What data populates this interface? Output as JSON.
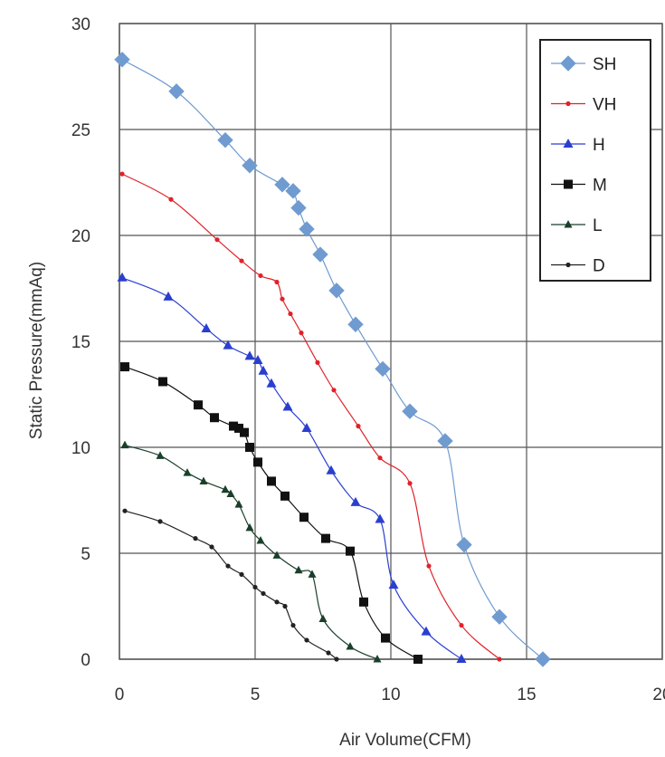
{
  "chart_data": {
    "type": "line",
    "title": "",
    "xlabel": "Air Volume(CFM)",
    "ylabel": "Static Pressure(mmAq)",
    "xlim": [
      0,
      20
    ],
    "ylim": [
      0,
      30
    ],
    "xticks": [
      "0",
      "5",
      "10",
      "15",
      "20"
    ],
    "yticks": [
      "0",
      "5",
      "10",
      "15",
      "20",
      "25",
      "30"
    ],
    "grid": true,
    "legend_position": "top-right",
    "series": [
      {
        "name": "SH",
        "color": "#6f9bd0",
        "marker": "diamond",
        "x": [
          0.1,
          2.1,
          3.9,
          4.8,
          6.0,
          6.4,
          6.6,
          6.9,
          7.4,
          8.0,
          8.7,
          9.7,
          10.7,
          12.0,
          12.7,
          14.0,
          15.6
        ],
        "y": [
          28.3,
          26.8,
          24.5,
          23.3,
          22.4,
          22.1,
          21.3,
          20.3,
          19.1,
          17.4,
          15.8,
          13.7,
          11.7,
          10.3,
          5.4,
          2.0,
          0.0
        ]
      },
      {
        "name": "VH",
        "color": "#e0222a",
        "marker": "dot",
        "x": [
          0.1,
          1.9,
          3.6,
          4.5,
          5.2,
          5.8,
          6.0,
          6.3,
          6.7,
          7.3,
          7.9,
          8.8,
          9.6,
          10.7,
          11.4,
          12.6,
          14.0
        ],
        "y": [
          22.9,
          21.7,
          19.8,
          18.8,
          18.1,
          17.8,
          17.0,
          16.3,
          15.4,
          14.0,
          12.7,
          11.0,
          9.5,
          8.3,
          4.4,
          1.6,
          0.0
        ]
      },
      {
        "name": "H",
        "color": "#2a3fd0",
        "marker": "triangle",
        "x": [
          0.1,
          1.8,
          3.2,
          4.0,
          4.8,
          5.1,
          5.3,
          5.6,
          6.2,
          6.9,
          7.8,
          8.7,
          9.6,
          10.1,
          11.3,
          12.6
        ],
        "y": [
          18.0,
          17.1,
          15.6,
          14.8,
          14.3,
          14.1,
          13.6,
          13.0,
          11.9,
          10.9,
          8.9,
          7.4,
          6.6,
          3.5,
          1.3,
          0.0
        ]
      },
      {
        "name": "M",
        "color": "#111111",
        "marker": "square",
        "x": [
          0.2,
          1.6,
          2.9,
          3.5,
          4.2,
          4.4,
          4.6,
          4.8,
          5.1,
          5.6,
          6.1,
          6.8,
          7.6,
          8.5,
          9.0,
          9.8,
          11.0
        ],
        "y": [
          13.8,
          13.1,
          12.0,
          11.4,
          11.0,
          10.9,
          10.7,
          10.0,
          9.3,
          8.4,
          7.7,
          6.7,
          5.7,
          5.1,
          2.7,
          1.0,
          0.0
        ]
      },
      {
        "name": "L",
        "color": "#1a3f2a",
        "marker": "small-triangle",
        "x": [
          0.2,
          1.5,
          2.5,
          3.1,
          3.9,
          4.1,
          4.4,
          4.8,
          5.2,
          5.8,
          6.6,
          7.1,
          7.5,
          8.5,
          9.5
        ],
        "y": [
          10.1,
          9.6,
          8.8,
          8.4,
          8.0,
          7.8,
          7.3,
          6.2,
          5.6,
          4.9,
          4.2,
          4.0,
          1.9,
          0.6,
          0.0
        ]
      },
      {
        "name": "D",
        "color": "#222222",
        "marker": "dot",
        "x": [
          0.2,
          1.5,
          2.8,
          3.4,
          4.0,
          4.5,
          5.0,
          5.3,
          5.8,
          6.1,
          6.4,
          6.9,
          7.7,
          8.0
        ],
        "y": [
          7.0,
          6.5,
          5.7,
          5.3,
          4.4,
          4.0,
          3.4,
          3.1,
          2.7,
          2.5,
          1.6,
          0.9,
          0.3,
          0.0
        ]
      }
    ]
  }
}
